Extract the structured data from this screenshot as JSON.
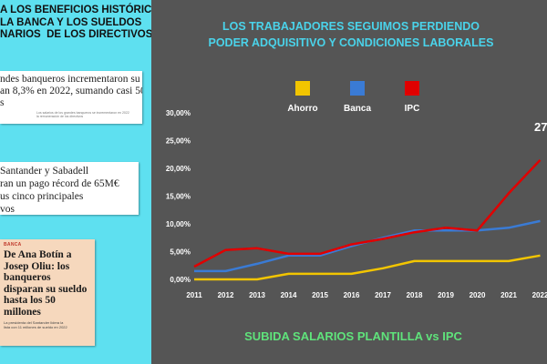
{
  "left_panel": {
    "title": "A LOS BENEFICIOS HISTÓRICOS\nLA BANCA Y LOS SUELDOS\nNARIOS  DE LOS DIRECTIVOS",
    "clip1": {
      "text": "ndes banqueros incrementaron su\nan 8,3% en 2022, sumando casi 50\ns",
      "sub": "Los salarios de los grandes banqueros se incrementaron en 2022\nla remuneración de los directivos"
    },
    "clip2": {
      "text": "Santander y Sabadell\nran un pago récord de 65M€\nus cinco principales\nvos"
    },
    "clip3": {
      "tag": "BANCA",
      "text": "De Ana Botín a\nJosep Oliu: los\nbanqueros\ndisparan su sueldo\nhasta los 50\nmillones",
      "sub": "La presidenta del Santander lidera la\nlista con 11 millones de sueldo en 2022"
    }
  },
  "chart_data": {
    "type": "line",
    "title": "LOS TRABAJADORES SEGUIMOS PERDIENDO\nPODER ADQUISITIVO Y CONDICIONES LABORALES",
    "subtitle": "SUBIDA SALARIOS PLANTILLA vs IPC",
    "x": [
      "2011",
      "2012",
      "2013",
      "2014",
      "2015",
      "2016",
      "2017",
      "2018",
      "2019",
      "2020",
      "2021",
      "2022"
    ],
    "ylim": [
      0,
      30
    ],
    "yticks": [
      "0,00%",
      "5,00%",
      "10,00%",
      "15,00%",
      "20,00%",
      "25,00%",
      "30,00%"
    ],
    "series": [
      {
        "name": "Ahorro",
        "color": "#f2c500",
        "values": [
          0,
          0,
          0,
          1.0,
          1.0,
          1.0,
          2.0,
          3.3,
          3.3,
          3.3,
          3.3,
          4.3
        ]
      },
      {
        "name": "Banca",
        "color": "#3a7bd5",
        "values": [
          1.5,
          1.5,
          2.8,
          4.3,
          4.3,
          6.0,
          7.5,
          8.8,
          8.8,
          8.8,
          9.3,
          10.5
        ]
      },
      {
        "name": "IPC",
        "color": "#e00000",
        "values": [
          2.3,
          5.3,
          5.6,
          4.6,
          4.6,
          6.3,
          7.3,
          8.5,
          9.3,
          8.8,
          15.5,
          21.5
        ]
      }
    ],
    "annotation": "27",
    "legend_position": "top",
    "grid": false
  }
}
